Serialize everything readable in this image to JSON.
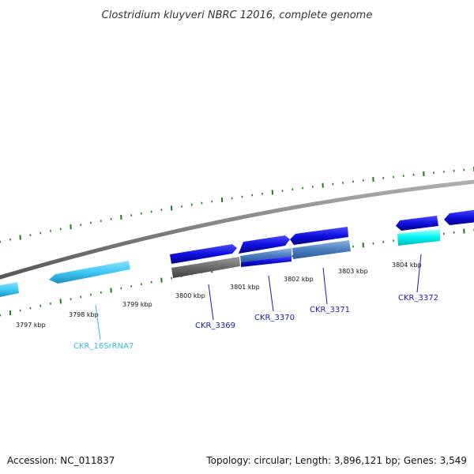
{
  "title": "Clostridium kluyveri NBRC 12016, complete genome",
  "footer": {
    "accession": "Accession: NC_011837",
    "summary": "Topology: circular; Length: 3,896,121 bp; Genes: 3,549"
  },
  "colors": {
    "backbone": "#7f7f7f",
    "tick": "#1f7a1f",
    "cds": "#1010e0",
    "rrna": "#3fc8f4",
    "pseudo_gray": "#6a6a6a",
    "steel": "#4a7fc0",
    "cyan": "#00f5f5",
    "cds_label": "#1a1aaa",
    "rrna_label": "#33bbdd"
  },
  "ticks": [
    {
      "label": "3797 kbp"
    },
    {
      "label": "3798 kbp"
    },
    {
      "label": "3799 kbp"
    },
    {
      "label": "3800 kbp"
    },
    {
      "label": "3801 kbp"
    },
    {
      "label": "3802 kbp"
    },
    {
      "label": "3803 kbp"
    },
    {
      "label": "3804 kbp"
    }
  ],
  "genes": [
    {
      "label": "CKR_16SrRNA7",
      "type": "rRNA"
    },
    {
      "label": "CKR_3369",
      "type": "CDS"
    },
    {
      "label": "CKR_3370",
      "type": "CDS"
    },
    {
      "label": "CKR_3371",
      "type": "CDS"
    },
    {
      "label": "CKR_3372",
      "type": "CDS"
    }
  ]
}
